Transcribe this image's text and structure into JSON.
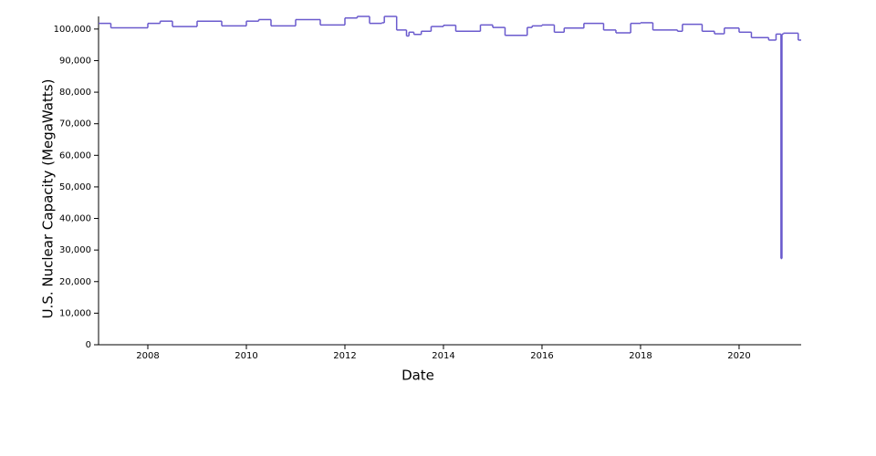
{
  "chart_data": {
    "type": "line",
    "step": "after",
    "x_label": "Date",
    "y_label": "U.S. Nuclear Capacity (MegaWatts)",
    "series": [
      {
        "color": "#6a5acd",
        "x": [
          2007.0,
          2007.25,
          2008.0,
          2008.25,
          2008.5,
          2009.0,
          2009.5,
          2010.0,
          2010.25,
          2010.5,
          2011.0,
          2011.5,
          2012.0,
          2012.25,
          2012.5,
          2012.75,
          2012.8,
          2013.05,
          2013.25,
          2013.3,
          2013.4,
          2013.55,
          2013.75,
          2014.0,
          2014.25,
          2014.75,
          2015.0,
          2015.25,
          2015.7,
          2015.8,
          2016.0,
          2016.25,
          2016.45,
          2016.85,
          2017.25,
          2017.5,
          2017.8,
          2018.0,
          2018.25,
          2018.75,
          2018.85,
          2019.25,
          2019.5,
          2019.7,
          2020.0,
          2020.25,
          2020.6,
          2020.75,
          2020.85,
          2020.87,
          2020.9,
          2021.2
        ],
        "values": [
          101800,
          100400,
          101800,
          102500,
          100800,
          102500,
          101000,
          102500,
          103000,
          101000,
          103000,
          101300,
          103500,
          104000,
          101800,
          102000,
          104000,
          99700,
          97800,
          99000,
          98300,
          99300,
          100800,
          101200,
          99300,
          101300,
          100500,
          98000,
          100500,
          101000,
          101300,
          99000,
          100300,
          101800,
          99700,
          98800,
          101800,
          102000,
          99700,
          99300,
          101500,
          99300,
          98500,
          100300,
          99000,
          97300,
          96500,
          98400,
          27300,
          98400,
          98700,
          96500
        ]
      }
    ],
    "xlim": [
      2007,
      2021.26
    ],
    "xticks": [
      2008,
      2010,
      2012,
      2014,
      2016,
      2018,
      2020
    ],
    "ylim": [
      0,
      104000
    ],
    "yticks": [
      0,
      {
        "value": 10000,
        "label": "10,000"
      },
      {
        "value": 20000,
        "label": "20,000"
      },
      {
        "value": 30000,
        "label": "30,000"
      },
      {
        "value": 40000,
        "label": "40,000"
      },
      {
        "value": 50000,
        "label": "50,000"
      },
      {
        "value": 60000,
        "label": "60,000"
      },
      {
        "value": 70000,
        "label": "70,000"
      },
      {
        "value": 80000,
        "label": "80,000"
      },
      {
        "value": 90000,
        "label": "90,000"
      },
      {
        "value": 100000,
        "label": "100,000"
      }
    ]
  }
}
